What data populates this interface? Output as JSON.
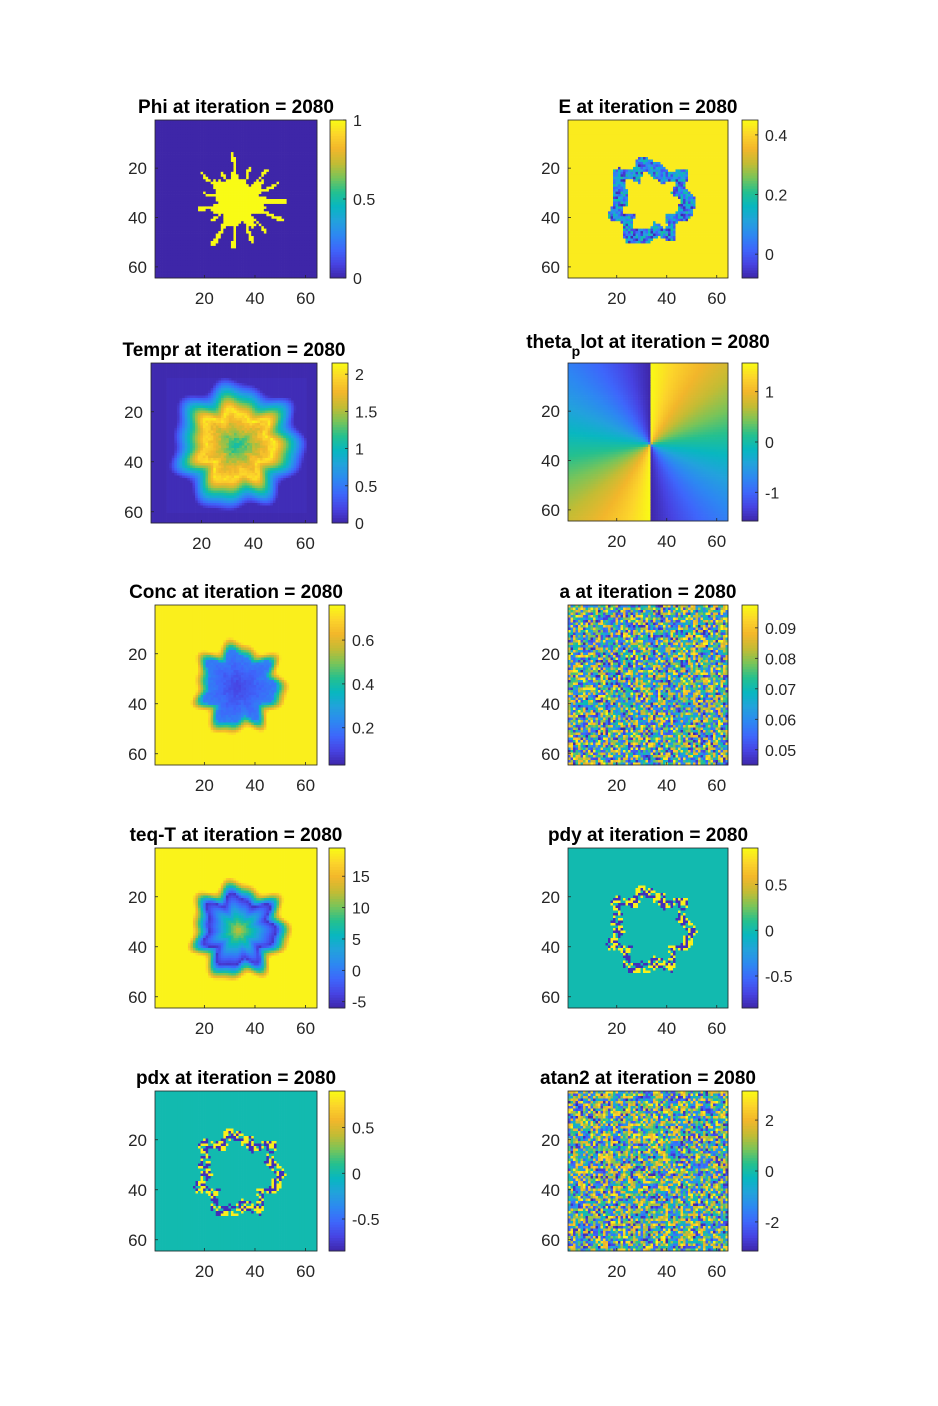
{
  "colormap_stops": [
    "#3e26a8",
    "#4743e2",
    "#3e66fb",
    "#2d87f2",
    "#22a2dc",
    "#08b7c0",
    "#24c08f",
    "#79c459",
    "#c3bc34",
    "#f2b62b",
    "#fcd42b",
    "#f9fb15"
  ],
  "chart_data": [
    {
      "type": "heatmap",
      "title": "Phi at iteration = 2080",
      "pattern": "phi",
      "xticks": [
        "20",
        "40",
        "60"
      ],
      "yticks": [
        "20",
        "40",
        "60"
      ],
      "colorbar": {
        "ticks": [
          {
            "v": 0,
            "label": "0"
          },
          {
            "v": 0.5,
            "label": "0.5"
          },
          {
            "v": 1,
            "label": "1"
          }
        ],
        "clim": [
          0,
          1
        ]
      }
    },
    {
      "type": "heatmap",
      "title": "E at iteration = 2080",
      "pattern": "ring_e",
      "xticks": [
        "20",
        "40",
        "60"
      ],
      "yticks": [
        "20",
        "40",
        "60"
      ],
      "colorbar": {
        "ticks": [
          {
            "v": 0,
            "label": "0"
          },
          {
            "v": 0.2,
            "label": "0.2"
          },
          {
            "v": 0.4,
            "label": "0.4"
          }
        ],
        "clim": [
          -0.08,
          0.45
        ]
      }
    },
    {
      "type": "heatmap",
      "title": "Tempr at iteration = 2080",
      "pattern": "tempr",
      "xticks": [
        "20",
        "40",
        "60"
      ],
      "yticks": [
        "20",
        "40",
        "60"
      ],
      "colorbar": {
        "ticks": [
          {
            "v": 0,
            "label": "0"
          },
          {
            "v": 0.5,
            "label": "0.5"
          },
          {
            "v": 1,
            "label": "1"
          },
          {
            "v": 1.5,
            "label": "1.5"
          },
          {
            "v": 2,
            "label": "2"
          }
        ],
        "clim": [
          0,
          2.15
        ]
      }
    },
    {
      "type": "heatmap",
      "title_main": "theta",
      "title_sub": "p",
      "title_rest": "lot at iteration = 2080",
      "pattern": "theta",
      "xticks": [
        "20",
        "40",
        "60"
      ],
      "yticks": [
        "20",
        "40",
        "60"
      ],
      "colorbar": {
        "ticks": [
          {
            "v": -1,
            "label": "-1"
          },
          {
            "v": 0,
            "label": "0"
          },
          {
            "v": 1,
            "label": "1"
          }
        ],
        "clim": [
          -1.5708,
          1.5708
        ]
      }
    },
    {
      "type": "heatmap",
      "title": "Conc at iteration = 2080",
      "pattern": "conc",
      "xticks": [
        "20",
        "40",
        "60"
      ],
      "yticks": [
        "20",
        "40",
        "60"
      ],
      "colorbar": {
        "ticks": [
          {
            "v": 0.2,
            "label": "0.2"
          },
          {
            "v": 0.4,
            "label": "0.4"
          },
          {
            "v": 0.6,
            "label": "0.6"
          }
        ],
        "clim": [
          0.03,
          0.76
        ]
      }
    },
    {
      "type": "heatmap",
      "title": "a at iteration = 2080",
      "pattern": "noise_a",
      "xticks": [
        "20",
        "40",
        "60"
      ],
      "yticks": [
        "20",
        "40",
        "60"
      ],
      "colorbar": {
        "ticks": [
          {
            "v": 0.05,
            "label": "0.05"
          },
          {
            "v": 0.06,
            "label": "0.06"
          },
          {
            "v": 0.07,
            "label": "0.07"
          },
          {
            "v": 0.08,
            "label": "0.08"
          },
          {
            "v": 0.09,
            "label": "0.09"
          }
        ],
        "clim": [
          0.045,
          0.0975
        ]
      }
    },
    {
      "type": "heatmap",
      "title": "teq-T at iteration = 2080",
      "pattern": "teq",
      "xticks": [
        "20",
        "40",
        "60"
      ],
      "yticks": [
        "20",
        "40",
        "60"
      ],
      "colorbar": {
        "ticks": [
          {
            "v": -5,
            "label": "-5"
          },
          {
            "v": 0,
            "label": "0"
          },
          {
            "v": 5,
            "label": "5"
          },
          {
            "v": 10,
            "label": "10"
          },
          {
            "v": 15,
            "label": "15"
          }
        ],
        "clim": [
          -6,
          19.5
        ]
      }
    },
    {
      "type": "heatmap",
      "title": "pdy at iteration = 2080",
      "pattern": "ring_noise",
      "xticks": [
        "20",
        "40",
        "60"
      ],
      "yticks": [
        "20",
        "40",
        "60"
      ],
      "colorbar": {
        "ticks": [
          {
            "v": -0.5,
            "label": "-0.5"
          },
          {
            "v": 0,
            "label": "0"
          },
          {
            "v": 0.5,
            "label": "0.5"
          }
        ],
        "clim": [
          -0.85,
          0.9
        ]
      }
    },
    {
      "type": "heatmap",
      "title": "pdx at iteration = 2080",
      "pattern": "ring_noise",
      "xticks": [
        "20",
        "40",
        "60"
      ],
      "yticks": [
        "20",
        "40",
        "60"
      ],
      "colorbar": {
        "ticks": [
          {
            "v": -0.5,
            "label": "-0.5"
          },
          {
            "v": 0,
            "label": "0"
          },
          {
            "v": 0.5,
            "label": "0.5"
          }
        ],
        "clim": [
          -0.85,
          0.9
        ]
      }
    },
    {
      "type": "heatmap",
      "title": "atan2 at iteration = 2080",
      "pattern": "noise_atan",
      "xticks": [
        "20",
        "40",
        "60"
      ],
      "yticks": [
        "20",
        "40",
        "60"
      ],
      "colorbar": {
        "ticks": [
          {
            "v": -2,
            "label": "-2"
          },
          {
            "v": 0,
            "label": "0"
          },
          {
            "v": 2,
            "label": "2"
          }
        ],
        "clim": [
          -3.1416,
          3.1416
        ]
      }
    }
  ]
}
